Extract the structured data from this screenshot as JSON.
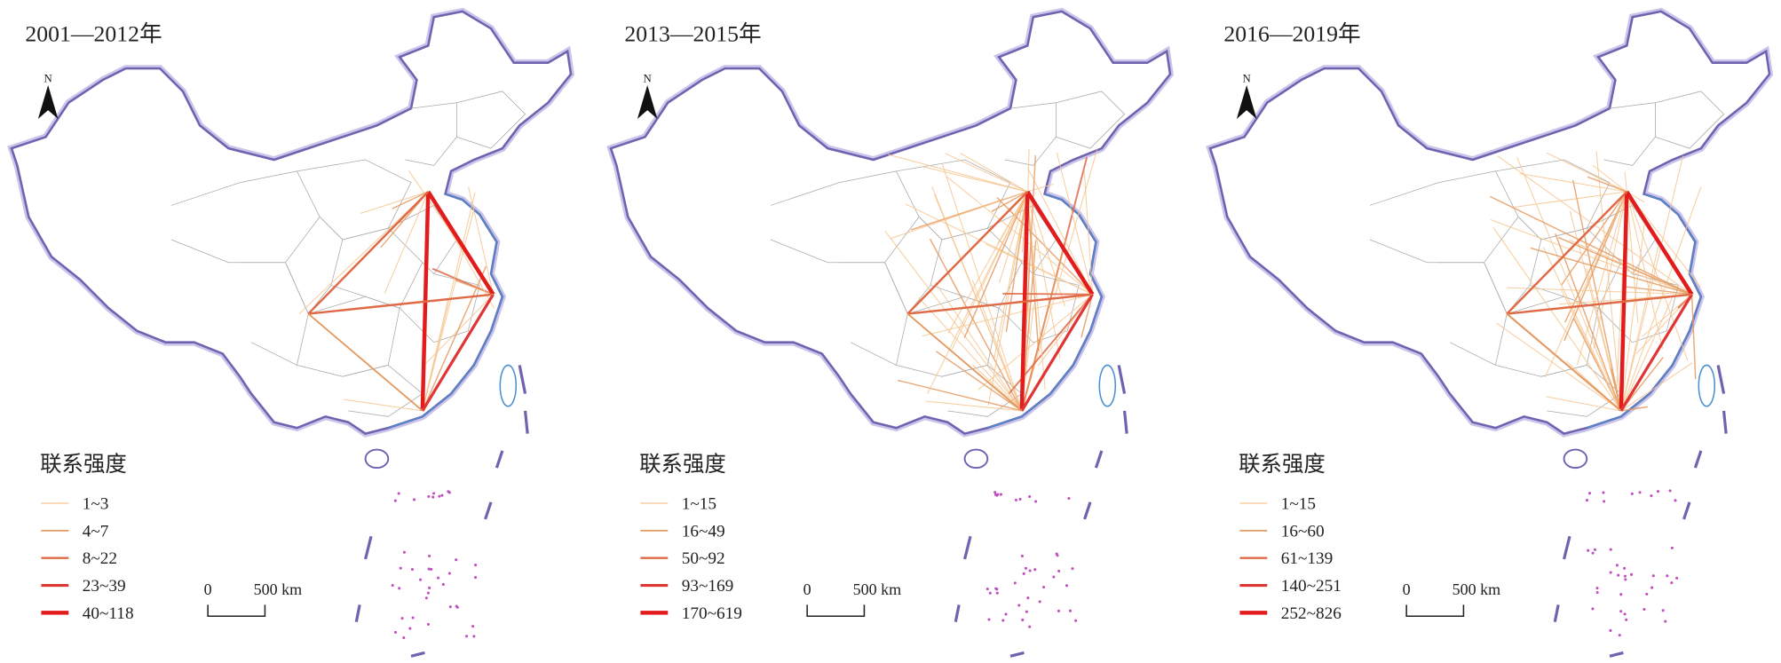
{
  "panels": [
    {
      "title": "2001—2012年",
      "north": "N",
      "legend_title": "联系强度",
      "legend": [
        "1~3",
        "4~7",
        "8~22",
        "23~39",
        "40~118"
      ],
      "scale": {
        "zero": "0",
        "distance": "500 km"
      }
    },
    {
      "title": "2013—2015年",
      "north": "N",
      "legend_title": "联系强度",
      "legend": [
        "1~15",
        "16~49",
        "50~92",
        "93~169",
        "170~619"
      ],
      "scale": {
        "zero": "0",
        "distance": "500 km"
      }
    },
    {
      "title": "2016—2019年",
      "north": "N",
      "legend_title": "联系强度",
      "legend": [
        "1~15",
        "16~60",
        "61~139",
        "140~251",
        "252~826"
      ],
      "scale": {
        "zero": "0",
        "distance": "500 km"
      }
    }
  ]
}
